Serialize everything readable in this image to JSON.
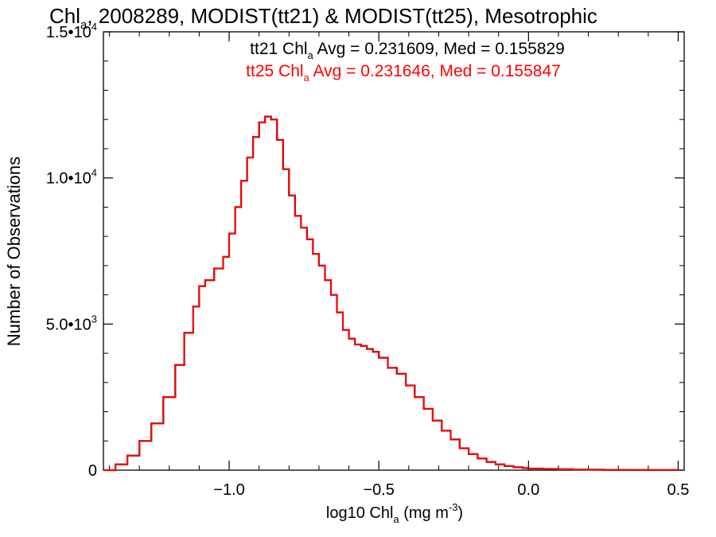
{
  "chart_data": {
    "type": "line",
    "title": {
      "prefix": "Chl",
      "sub": "a",
      "rest": ", 2008289, MODIST(tt21) & MODIST(tt25), Mesotrophic"
    },
    "xlabel": {
      "prefix": "log10 Chl",
      "sub": "a",
      "mid": " (mg m",
      "sup": "-3",
      "end": ")"
    },
    "ylabel": "Number of Observations",
    "xlim": [
      -1.42,
      0.52
    ],
    "ylim": [
      0,
      15000
    ],
    "x_ticks": [
      {
        "value": -1.0,
        "label": "−1.0"
      },
      {
        "value": -0.5,
        "label": "−0.5"
      },
      {
        "value": 0.0,
        "label": "0.0"
      },
      {
        "value": 0.5,
        "label": "0.5"
      }
    ],
    "y_ticks": [
      {
        "value": 0,
        "mant": "0",
        "exp": ""
      },
      {
        "value": 5000,
        "mant": "5.0•10",
        "exp": "3"
      },
      {
        "value": 10000,
        "mant": "1.0•10",
        "exp": "4"
      },
      {
        "value": 15000,
        "mant": "1.5•10",
        "exp": "4"
      }
    ],
    "grid": false,
    "annotations": [
      {
        "pre": "tt21 Chl",
        "sub": "a",
        "post": " Avg = 0.231609, Med = 0.155829",
        "color": "#000000"
      },
      {
        "pre": "tt25 Chl",
        "sub": "a",
        "post": " Avg = 0.231646, Med = 0.155847",
        "color": "#ff0000"
      }
    ],
    "series": [
      {
        "color": "#000000",
        "x": [
          -1.42,
          -1.38,
          -1.34,
          -1.3,
          -1.26,
          -1.22,
          -1.18,
          -1.15,
          -1.12,
          -1.1,
          -1.08,
          -1.05,
          -1.02,
          -1.0,
          -0.98,
          -0.96,
          -0.94,
          -0.92,
          -0.9,
          -0.88,
          -0.86,
          -0.84,
          -0.82,
          -0.8,
          -0.78,
          -0.76,
          -0.74,
          -0.72,
          -0.7,
          -0.68,
          -0.66,
          -0.64,
          -0.62,
          -0.6,
          -0.58,
          -0.56,
          -0.54,
          -0.52,
          -0.5,
          -0.47,
          -0.44,
          -0.41,
          -0.38,
          -0.35,
          -0.32,
          -0.29,
          -0.26,
          -0.23,
          -0.2,
          -0.17,
          -0.14,
          -0.11,
          -0.08,
          -0.05,
          -0.02,
          0.0,
          0.05,
          0.1,
          0.15,
          0.2,
          0.25,
          0.3,
          0.35,
          0.4,
          0.45,
          0.5
        ],
        "y": [
          0,
          200,
          500,
          1000,
          1600,
          2500,
          3600,
          4700,
          5600,
          6300,
          6500,
          6900,
          7300,
          8100,
          9000,
          9900,
          10700,
          11400,
          11900,
          12100,
          12000,
          11300,
          10300,
          9400,
          8700,
          8300,
          7900,
          7400,
          7000,
          6500,
          6000,
          5400,
          4800,
          4500,
          4300,
          4250,
          4150,
          4050,
          3850,
          3500,
          3300,
          2900,
          2500,
          2100,
          1700,
          1350,
          1050,
          750,
          550,
          400,
          280,
          200,
          140,
          100,
          70,
          55,
          40,
          30,
          20,
          15,
          12,
          10,
          8,
          6,
          5,
          2
        ]
      },
      {
        "color": "#ff0000",
        "x": [
          -1.42,
          -1.38,
          -1.34,
          -1.3,
          -1.26,
          -1.22,
          -1.18,
          -1.15,
          -1.12,
          -1.1,
          -1.08,
          -1.05,
          -1.02,
          -1.0,
          -0.98,
          -0.96,
          -0.94,
          -0.92,
          -0.9,
          -0.88,
          -0.86,
          -0.84,
          -0.82,
          -0.8,
          -0.78,
          -0.76,
          -0.74,
          -0.72,
          -0.7,
          -0.68,
          -0.66,
          -0.64,
          -0.62,
          -0.6,
          -0.58,
          -0.56,
          -0.54,
          -0.52,
          -0.5,
          -0.47,
          -0.44,
          -0.41,
          -0.38,
          -0.35,
          -0.32,
          -0.29,
          -0.26,
          -0.23,
          -0.2,
          -0.17,
          -0.14,
          -0.11,
          -0.08,
          -0.05,
          -0.02,
          0.0,
          0.05,
          0.1,
          0.15,
          0.2,
          0.25,
          0.3,
          0.35,
          0.4,
          0.45,
          0.5
        ],
        "y": [
          0,
          200,
          500,
          1000,
          1600,
          2500,
          3600,
          4700,
          5600,
          6300,
          6500,
          6900,
          7300,
          8100,
          9000,
          9900,
          10700,
          11400,
          11900,
          12100,
          12000,
          11300,
          10300,
          9400,
          8700,
          8300,
          7900,
          7400,
          7000,
          6500,
          6000,
          5400,
          4800,
          4500,
          4300,
          4250,
          4150,
          4050,
          3850,
          3500,
          3300,
          2900,
          2500,
          2100,
          1700,
          1350,
          1050,
          750,
          550,
          400,
          280,
          200,
          140,
          100,
          70,
          55,
          40,
          30,
          20,
          15,
          12,
          10,
          8,
          6,
          5,
          2
        ]
      }
    ]
  }
}
